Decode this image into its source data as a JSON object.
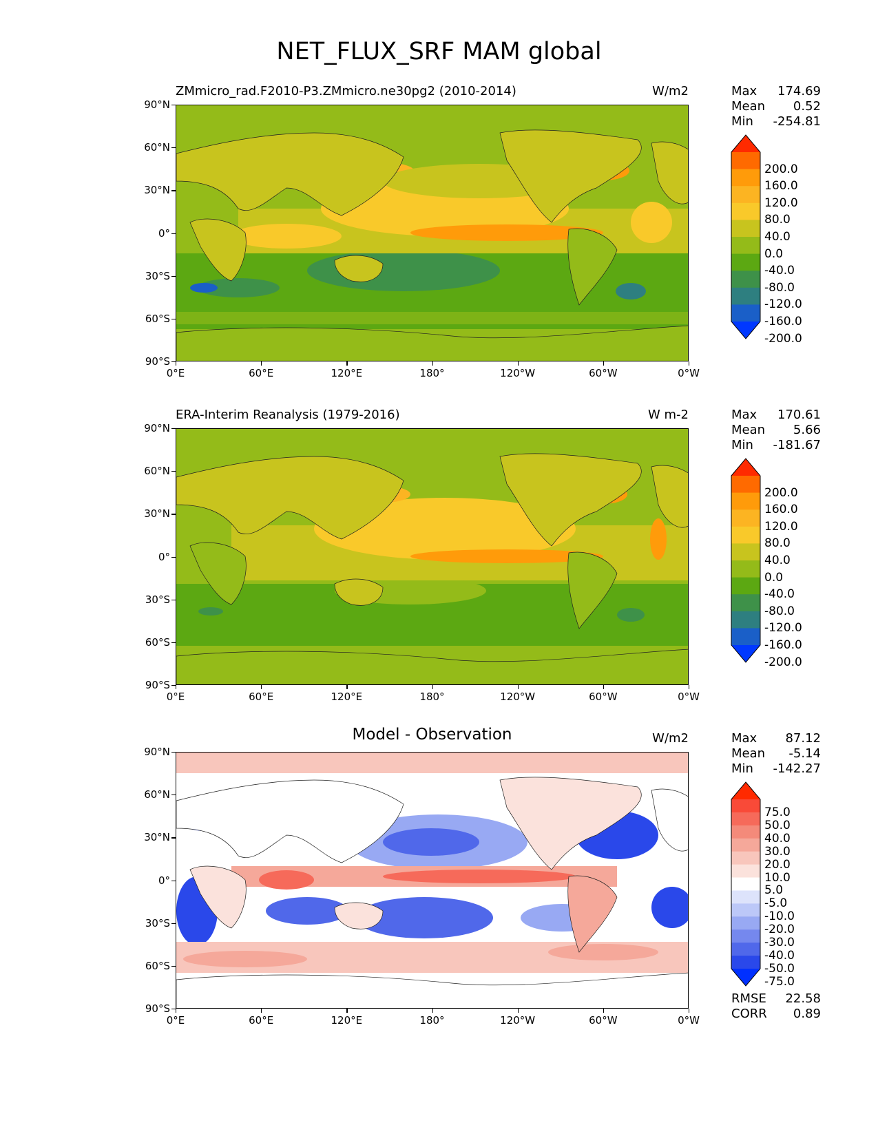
{
  "title": "NET_FLUX_SRF MAM global",
  "x_ticks": [
    "0°E",
    "60°E",
    "120°E",
    "180°",
    "120°W",
    "60°W",
    "0°W"
  ],
  "y_ticks": [
    "90°N",
    "60°N",
    "30°N",
    "0°",
    "30°S",
    "60°S",
    "90°S"
  ],
  "panels": [
    {
      "title_left": "ZMmicro_rad.F2010-P3.ZMmicro.ne30pg2 (2010-2014)",
      "title_center": "",
      "units": "W/m2",
      "stats": {
        "max_label": "Max",
        "max": "174.69",
        "mean_label": "Mean",
        "mean": "0.52",
        "min_label": "Min",
        "min": "-254.81"
      },
      "colorbar": {
        "levels": [
          "200.0",
          "160.0",
          "120.0",
          "80.0",
          "40.0",
          "0.0",
          "-40.0",
          "-80.0",
          "-120.0",
          "-160.0",
          "-200.0"
        ],
        "colors": [
          "#ff2a00",
          "#ff6a00",
          "#ff9b0a",
          "#fcb422",
          "#f9c92a",
          "#c8c41e",
          "#94bb19",
          "#5ca812",
          "#3e9149",
          "#2e7f80",
          "#1a5fc8",
          "#0038ff"
        ]
      }
    },
    {
      "title_left": "ERA-Interim Reanalysis (1979-2016)",
      "title_center": "",
      "units": "W m-2",
      "stats": {
        "max_label": "Max",
        "max": "170.61",
        "mean_label": "Mean",
        "mean": "5.66",
        "min_label": "Min",
        "min": "-181.67"
      },
      "colorbar": {
        "levels": [
          "200.0",
          "160.0",
          "120.0",
          "80.0",
          "40.0",
          "0.0",
          "-40.0",
          "-80.0",
          "-120.0",
          "-160.0",
          "-200.0"
        ],
        "colors": [
          "#ff2a00",
          "#ff6a00",
          "#ff9b0a",
          "#fcb422",
          "#f9c92a",
          "#c8c41e",
          "#94bb19",
          "#5ca812",
          "#3e9149",
          "#2e7f80",
          "#1a5fc8",
          "#0038ff"
        ]
      }
    },
    {
      "title_left": "",
      "title_center": "Model - Observation",
      "units": "W/m2",
      "stats": {
        "max_label": "Max",
        "max": "87.12",
        "mean_label": "Mean",
        "mean": "-5.14",
        "min_label": "Min",
        "min": "-142.27"
      },
      "colorbar": {
        "levels": [
          "75.0",
          "50.0",
          "40.0",
          "30.0",
          "20.0",
          "10.0",
          "5.0",
          "-5.0",
          "-10.0",
          "-20.0",
          "-30.0",
          "-40.0",
          "-50.0",
          "-75.0"
        ],
        "colors": [
          "#ff2a00",
          "#f94a38",
          "#f66a5a",
          "#f48a7a",
          "#f5a89a",
          "#f8c6bc",
          "#fbe2dc",
          "#ffffff",
          "#dde3fb",
          "#bcc8f8",
          "#98a9f3",
          "#7588ee",
          "#5068ea",
          "#2a48ea",
          "#0030ff"
        ]
      }
    }
  ],
  "metrics": {
    "rmse_label": "RMSE",
    "rmse": "22.58",
    "corr_label": "CORR",
    "corr": "0.89"
  }
}
